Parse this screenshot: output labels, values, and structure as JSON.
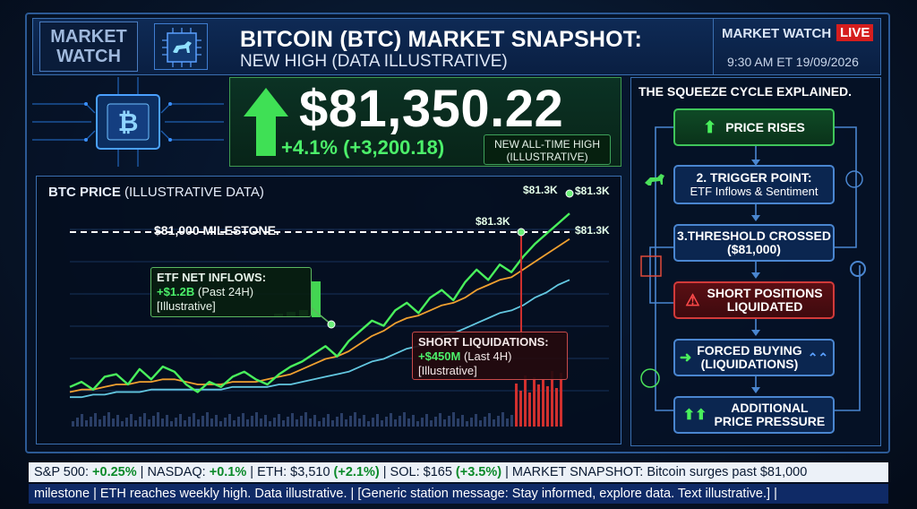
{
  "header": {
    "logo_line1": "MARKET",
    "logo_line2": "WATCH",
    "title": "BITCOIN (BTC) MARKET SNAPSHOT:",
    "subtitle": "NEW HIGH (DATA ILLUSTRATIVE)",
    "mw_label": "MARKET WATCH",
    "live": "LIVE",
    "time": "9:30 AM ET 19/09/2026"
  },
  "price_panel": {
    "price": "$81,350.22",
    "change": "+4.1% (+3,200.18)",
    "ath_line1": "NEW ALL-TIME HIGH",
    "ath_line2": "(ILLUSTRATIVE)",
    "accent": "#4cf06a"
  },
  "chart": {
    "title_bold": "BTC PRICE",
    "title_rest": " (ILLUSTRATIVE DATA)",
    "milestone_label": "$81,000 MILESTONE.",
    "labels": [
      "$81.3K",
      "$81.3K",
      "$81.3K",
      "$81.3K"
    ],
    "etf_title": "ETF NET INFLOWS:",
    "etf_value": "+$1.2B",
    "etf_rest": " (Past 24H)",
    "etf_note": "[Illustrative]",
    "liq_title": "SHORT LIQUIDATIONS:",
    "liq_value": "+$450M",
    "liq_rest": " (Last 4H)",
    "liq_note": "[Illustrative]"
  },
  "chart_data": {
    "type": "line",
    "title": "BTC PRICE (ILLUSTRATIVE DATA)",
    "series": [
      {
        "values": [
          62,
          64,
          61,
          66,
          67,
          63,
          69,
          65,
          70,
          68,
          63,
          60,
          64,
          62,
          66,
          68,
          65,
          63,
          67,
          70,
          72,
          75,
          78,
          74,
          80,
          84,
          88,
          86,
          92,
          95,
          91,
          97,
          100,
          96,
          103,
          108,
          104,
          110,
          107,
          113,
          118,
          122,
          126,
          130
        ]
      },
      {
        "values": [
          60,
          61,
          61,
          62,
          63,
          63,
          64,
          64,
          65,
          65,
          64,
          63,
          63,
          63,
          64,
          64,
          64,
          65,
          66,
          67,
          69,
          71,
          73,
          74,
          76,
          79,
          82,
          84,
          87,
          89,
          90,
          92,
          94,
          95,
          97,
          100,
          102,
          104,
          105,
          108,
          111,
          114,
          117,
          120
        ]
      },
      {
        "values": [
          58,
          58,
          59,
          59,
          60,
          60,
          60,
          61,
          61,
          61,
          61,
          61,
          61,
          61,
          62,
          62,
          62,
          62,
          63,
          63,
          64,
          65,
          66,
          67,
          68,
          70,
          72,
          73,
          75,
          77,
          78,
          80,
          82,
          83,
          85,
          87,
          89,
          91,
          92,
          94,
          97,
          99,
          102,
          104
        ]
      }
    ],
    "milestone": 81000,
    "colors": [
      "#49f05c",
      "#f0a030",
      "#63c7e0"
    ]
  },
  "cycle": {
    "title": "THE SQUEEZE CYCLE EXPLAINED.",
    "steps": [
      {
        "l1": "PRICE RISES",
        "l2": ""
      },
      {
        "l1": "2. TRIGGER POINT:",
        "l2": "ETF Inflows & Sentiment"
      },
      {
        "l1": "3.THRESHOLD CROSSED",
        "l2": "($81,000)"
      },
      {
        "l1": "SHORT POSITIONS",
        "l2": "LIQUIDATED"
      },
      {
        "l1": "FORCED BUYING",
        "l2": "(LIQUIDATIONS)"
      },
      {
        "l1": "ADDITIONAL",
        "l2": "PRICE PRESSURE"
      }
    ]
  },
  "ticker": {
    "line1_parts": [
      {
        "t": "S&P 500: ",
        "c": "n"
      },
      {
        "t": "+0.25%",
        "c": "g"
      },
      {
        "t": " | NASDAQ: ",
        "c": "n"
      },
      {
        "t": "+0.1%",
        "c": "g"
      },
      {
        "t": " | ETH: $3,510 ",
        "c": "n"
      },
      {
        "t": "(+2.1%)",
        "c": "g"
      },
      {
        "t": " | SOL: $165 ",
        "c": "n"
      },
      {
        "t": "(+3.5%)",
        "c": "g"
      },
      {
        "t": " | MARKET SNAPSHOT: Bitcoin surges past $81,000",
        "c": "n"
      }
    ],
    "line2": "milestone | ETH reaches weekly high. Data illustrative. | [Generic station message: Stay informed, explore data. Text illustrative.] |"
  }
}
